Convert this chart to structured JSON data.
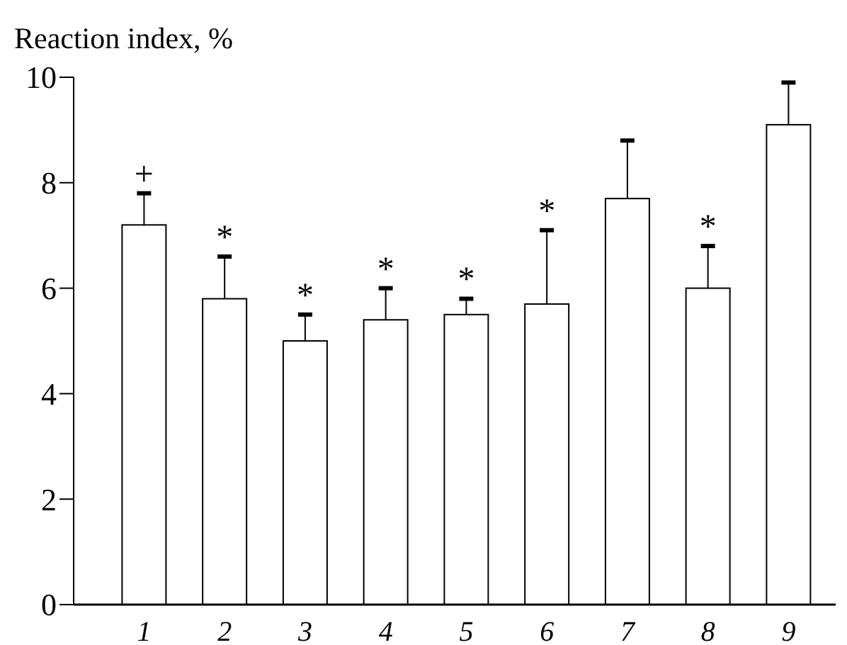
{
  "chart_data": {
    "type": "bar",
    "ylabel": "Reaction index, %",
    "categories": [
      "1",
      "2",
      "3",
      "4",
      "5",
      "6",
      "7",
      "8",
      "9"
    ],
    "values": [
      7.2,
      5.8,
      5.0,
      5.4,
      5.5,
      5.7,
      7.7,
      6.0,
      9.1
    ],
    "errors": [
      [
        7.2,
        7.8
      ],
      [
        5.8,
        6.6
      ],
      [
        5.0,
        5.5
      ],
      [
        5.4,
        6.0
      ],
      [
        5.5,
        5.8
      ],
      [
        5.7,
        7.1
      ],
      [
        7.7,
        8.8
      ],
      [
        6.0,
        6.8
      ],
      [
        9.1,
        9.9
      ]
    ],
    "color": "#ffffff",
    "ylim": [
      0,
      10
    ],
    "yticks": [
      0,
      2,
      4,
      6,
      8,
      10
    ],
    "grid": false,
    "annotations": [
      {
        "text": "+",
        "x": "1",
        "y": 7.8
      },
      {
        "text": "*",
        "x": "2",
        "y": 6.6
      },
      {
        "text": "*",
        "x": "3",
        "y": 5.5
      },
      {
        "text": "*",
        "x": "4",
        "y": 6.0
      },
      {
        "text": "*",
        "x": "5",
        "y": 5.8
      },
      {
        "text": "*",
        "x": "6",
        "y": 7.1
      },
      {
        "text": "*",
        "x": "8",
        "y": 6.8
      }
    ]
  }
}
